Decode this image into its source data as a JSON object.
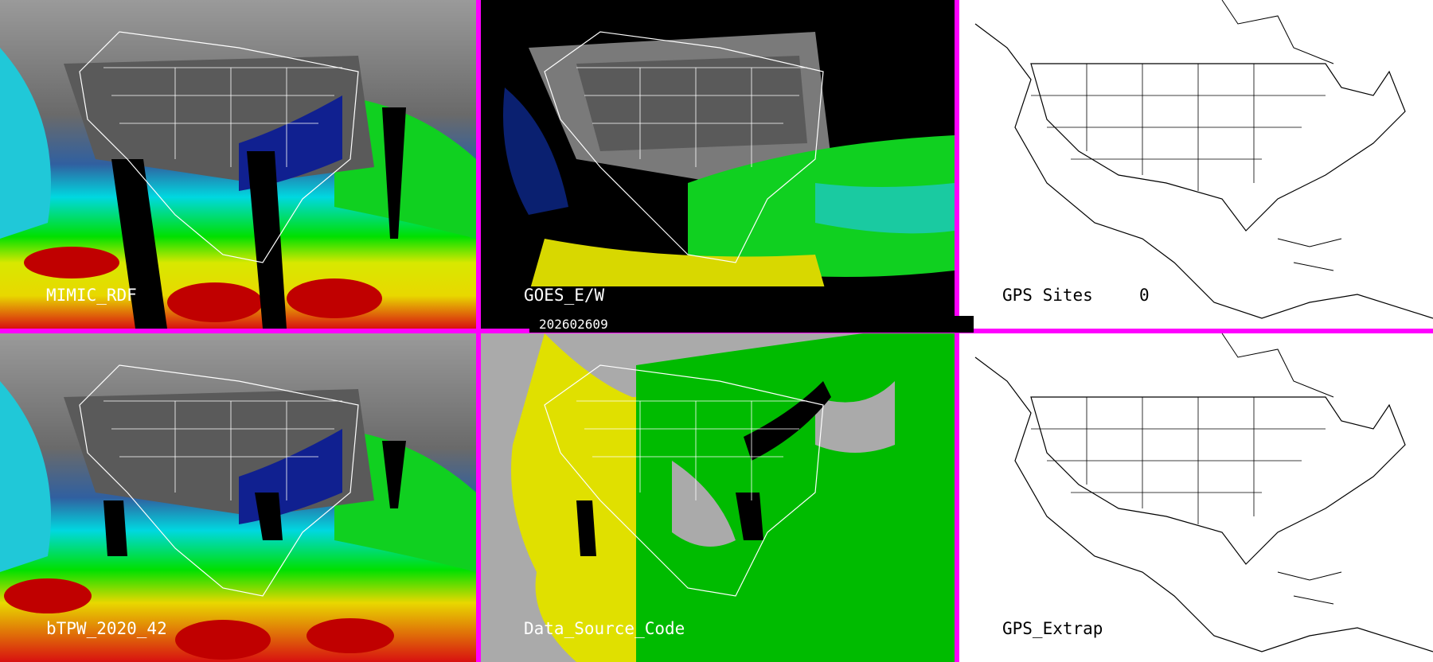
{
  "panels": {
    "p1": {
      "label": "MIMIC_RDF"
    },
    "p2": {
      "label": "GOES_E/W"
    },
    "p3": {
      "label": "GPS Sites",
      "count": "0"
    },
    "p4": {
      "label": "bTPW_2020_42"
    },
    "p5": {
      "label": "Data_Source_Code"
    },
    "p6": {
      "label": "GPS_Extrap"
    }
  },
  "timestamp": "202602609",
  "colors": {
    "border": "#ff00ff",
    "tpw_low": "#00e0e8",
    "tpw_mid": "#00e000",
    "tpw_high": "#e8e800",
    "tpw_max": "#d00000",
    "tpw_dry": "#000080",
    "source_yellow": "#e0e000",
    "source_green": "#00bb00",
    "source_gray": "#aaaaaa"
  }
}
